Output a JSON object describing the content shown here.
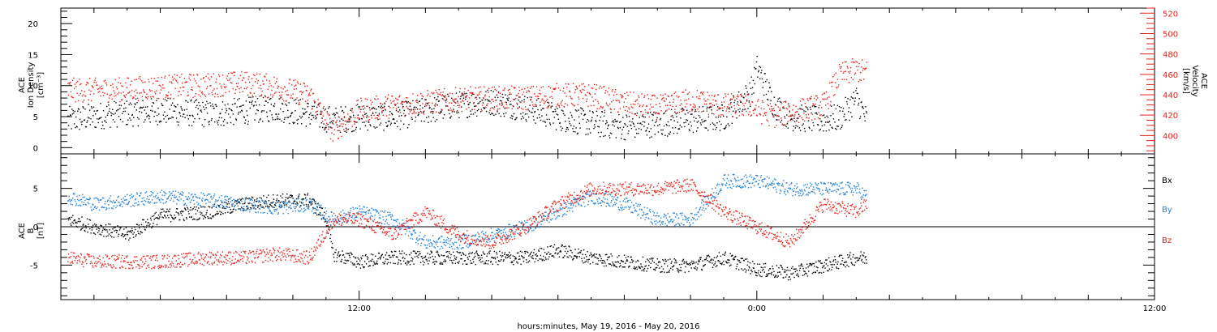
{
  "figure": {
    "xaxis_title": "hours:minutes, May 19, 2016 - May 20, 2016",
    "tick_labels": [
      "12:00",
      "0:00",
      "12:00"
    ],
    "colors": {
      "black": "#000000",
      "blue": "#1f7fd6",
      "red": "#e8211b"
    }
  },
  "chart_data": [
    {
      "type": "scatter",
      "panel": "top",
      "ylabel_left": [
        "ACE",
        "Ion Density",
        "[cm⁻³]"
      ],
      "ylabel_right": [
        "ACE",
        "Velocity",
        "[km/s]"
      ],
      "xlim_hours": [
        3,
        36
      ],
      "data_end_hours": 27.3,
      "ylim_left": [
        -1,
        22.5
      ],
      "yticks_left": [
        0,
        5,
        10,
        15,
        20
      ],
      "ylim_right": [
        382,
        525
      ],
      "yticks_right": [
        400,
        420,
        440,
        460,
        480,
        500,
        520
      ],
      "series": [
        {
          "axis": "left",
          "color": "black",
          "points": [
            [
              3.2,
              4.5
            ],
            [
              4.5,
              5.5
            ],
            [
              6,
              6
            ],
            [
              7.5,
              5.5
            ],
            [
              8.5,
              6
            ],
            [
              9.5,
              6.5
            ],
            [
              10.5,
              5.5
            ],
            [
              11.2,
              4.5
            ],
            [
              12,
              5
            ],
            [
              13,
              5
            ],
            [
              14,
              6
            ],
            [
              15,
              7
            ],
            [
              16,
              7.5
            ],
            [
              17,
              6.5
            ],
            [
              18,
              5
            ],
            [
              19,
              4
            ],
            [
              20,
              3.5
            ],
            [
              21,
              4
            ],
            [
              22,
              4.5
            ],
            [
              23,
              5
            ],
            [
              23.8,
              9
            ],
            [
              24,
              13
            ],
            [
              24.5,
              7
            ],
            [
              25,
              5
            ],
            [
              26,
              4.5
            ],
            [
              26.5,
              5
            ],
            [
              27,
              8
            ],
            [
              27.3,
              4.5
            ]
          ]
        },
        {
          "axis": "right",
          "color": "red",
          "points": [
            [
              3.2,
              445
            ],
            [
              4.5,
              445
            ],
            [
              6,
              448
            ],
            [
              7.5,
              450
            ],
            [
              8.5,
              452
            ],
            [
              9.5,
              448
            ],
            [
              10.5,
              440
            ],
            [
              11.2,
              405
            ],
            [
              12,
              425
            ],
            [
              13,
              430
            ],
            [
              14,
              433
            ],
            [
              15,
              436
            ],
            [
              16,
              437
            ],
            [
              17,
              437
            ],
            [
              18,
              440
            ],
            [
              19,
              440
            ],
            [
              20,
              432
            ],
            [
              21,
              428
            ],
            [
              22,
              435
            ],
            [
              23,
              430
            ],
            [
              23.8,
              430
            ],
            [
              24,
              425
            ],
            [
              24.5,
              420
            ],
            [
              25,
              423
            ],
            [
              26,
              430
            ],
            [
              26.5,
              460
            ],
            [
              27,
              465
            ],
            [
              27.3,
              462
            ]
          ]
        }
      ]
    },
    {
      "type": "scatter",
      "panel": "bottom",
      "ylabel_left": [
        "ACE",
        "B",
        "[nT]"
      ],
      "legend": [
        "Bx",
        "By",
        "Bz"
      ],
      "legend_placement": "right",
      "xlim_hours": [
        3,
        36
      ],
      "data_end_hours": 27.3,
      "ylim": [
        -9.5,
        9.5
      ],
      "yticks": [
        -5,
        0,
        5
      ],
      "series": [
        {
          "name": "Bx",
          "color": "black",
          "points": [
            [
              3.2,
              1
            ],
            [
              4,
              0
            ],
            [
              5,
              -1
            ],
            [
              6,
              1.5
            ],
            [
              7.5,
              2
            ],
            [
              8.5,
              3
            ],
            [
              9.5,
              3.5
            ],
            [
              10.5,
              3.5
            ],
            [
              11,
              1
            ],
            [
              11.2,
              -3.5
            ],
            [
              12,
              -4.5
            ],
            [
              13,
              -4
            ],
            [
              14,
              -4
            ],
            [
              15,
              -4
            ],
            [
              16,
              -4
            ],
            [
              17,
              -4
            ],
            [
              18,
              -3
            ],
            [
              19,
              -4
            ],
            [
              20,
              -4.5
            ],
            [
              21,
              -5
            ],
            [
              22,
              -5
            ],
            [
              23,
              -4
            ],
            [
              24,
              -5.5
            ],
            [
              25,
              -6
            ],
            [
              26,
              -5
            ],
            [
              27,
              -4
            ],
            [
              27.3,
              -4
            ]
          ]
        },
        {
          "name": "By",
          "color": "blue",
          "points": [
            [
              3.2,
              4
            ],
            [
              4,
              3
            ],
            [
              5,
              3.5
            ],
            [
              6,
              4
            ],
            [
              7.5,
              3.5
            ],
            [
              8.5,
              3
            ],
            [
              9.5,
              2.5
            ],
            [
              10.5,
              3
            ],
            [
              11.2,
              1
            ],
            [
              12,
              2
            ],
            [
              13,
              1
            ],
            [
              14,
              -2
            ],
            [
              15,
              -2
            ],
            [
              16,
              -1
            ],
            [
              17,
              0
            ],
            [
              18,
              2
            ],
            [
              19,
              4
            ],
            [
              20,
              3
            ],
            [
              21,
              1
            ],
            [
              22,
              1
            ],
            [
              23,
              6
            ],
            [
              24,
              6
            ],
            [
              25,
              5
            ],
            [
              26,
              5
            ],
            [
              27,
              5
            ],
            [
              27.3,
              4
            ]
          ]
        },
        {
          "name": "Bz",
          "color": "red",
          "points": [
            [
              3.2,
              -4
            ],
            [
              4,
              -4.5
            ],
            [
              5,
              -4.5
            ],
            [
              6,
              -4.5
            ],
            [
              7.5,
              -4
            ],
            [
              8.5,
              -4
            ],
            [
              9.5,
              -3.5
            ],
            [
              10.5,
              -4
            ],
            [
              11.2,
              1
            ],
            [
              12,
              1
            ],
            [
              13,
              -1
            ],
            [
              14,
              2
            ],
            [
              15,
              -1
            ],
            [
              16,
              -2
            ],
            [
              17,
              0
            ],
            [
              18,
              3
            ],
            [
              19,
              5
            ],
            [
              20,
              5
            ],
            [
              21,
              5
            ],
            [
              22,
              5.5
            ],
            [
              23,
              2
            ],
            [
              24,
              0
            ],
            [
              25,
              -2
            ],
            [
              26,
              3
            ],
            [
              27,
              2
            ],
            [
              27.3,
              3
            ]
          ]
        }
      ]
    }
  ]
}
